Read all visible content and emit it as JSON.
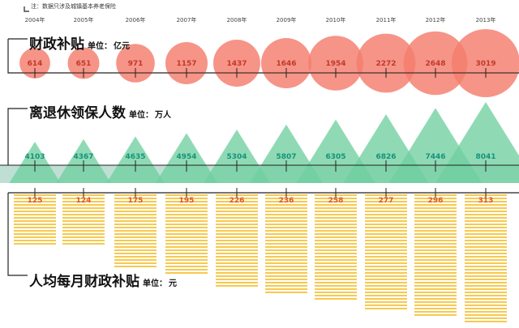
{
  "note": "注：数据只涉及城镇基本养老保险",
  "years": [
    "2004年",
    "2005年",
    "2006年",
    "2007年",
    "2008年",
    "2009年",
    "2010年",
    "2011年",
    "2012年",
    "2013年"
  ],
  "sections": {
    "subsidy": {
      "title": "财政补贴",
      "unit_label": "单位：",
      "unit": "亿元"
    },
    "retirees": {
      "title": "离退休领保人数",
      "unit_label": "单位：",
      "unit": "万人"
    },
    "per_capita": {
      "title": "人均每月财政补贴",
      "unit_label": "单位：",
      "unit": "元"
    }
  },
  "colors": {
    "circle": "#f47c6c",
    "triangle": "#6fcf9f",
    "band": "#b8dcd0",
    "bar": "#f7c94f",
    "circle_text": "#c0392b",
    "triangle_text": "#15937a",
    "bar_text": "#e0582a",
    "axis": "#222222"
  },
  "chart_data": [
    {
      "type": "scatter",
      "title": "财政补贴",
      "unit": "亿元",
      "categories": [
        "2004年",
        "2005年",
        "2006年",
        "2007年",
        "2008年",
        "2009年",
        "2010年",
        "2011年",
        "2012年",
        "2013年"
      ],
      "values": [
        614,
        651,
        971,
        1157,
        1437,
        1646,
        1954,
        2272,
        2648,
        3019
      ]
    },
    {
      "type": "bar",
      "title": "离退休领保人数",
      "unit": "万人",
      "categories": [
        "2004年",
        "2005年",
        "2006年",
        "2007年",
        "2008年",
        "2009年",
        "2010年",
        "2011年",
        "2012年",
        "2013年"
      ],
      "values": [
        4103,
        4367,
        4635,
        4954,
        5304,
        5807,
        6305,
        6826,
        7446,
        8041
      ]
    },
    {
      "type": "bar",
      "title": "人均每月财政补贴",
      "unit": "元",
      "categories": [
        "2004年",
        "2005年",
        "2006年",
        "2007年",
        "2008年",
        "2009年",
        "2010年",
        "2011年",
        "2012年",
        "2013年"
      ],
      "values": [
        125,
        124,
        175,
        195,
        226,
        236,
        258,
        277,
        296,
        313
      ]
    }
  ]
}
